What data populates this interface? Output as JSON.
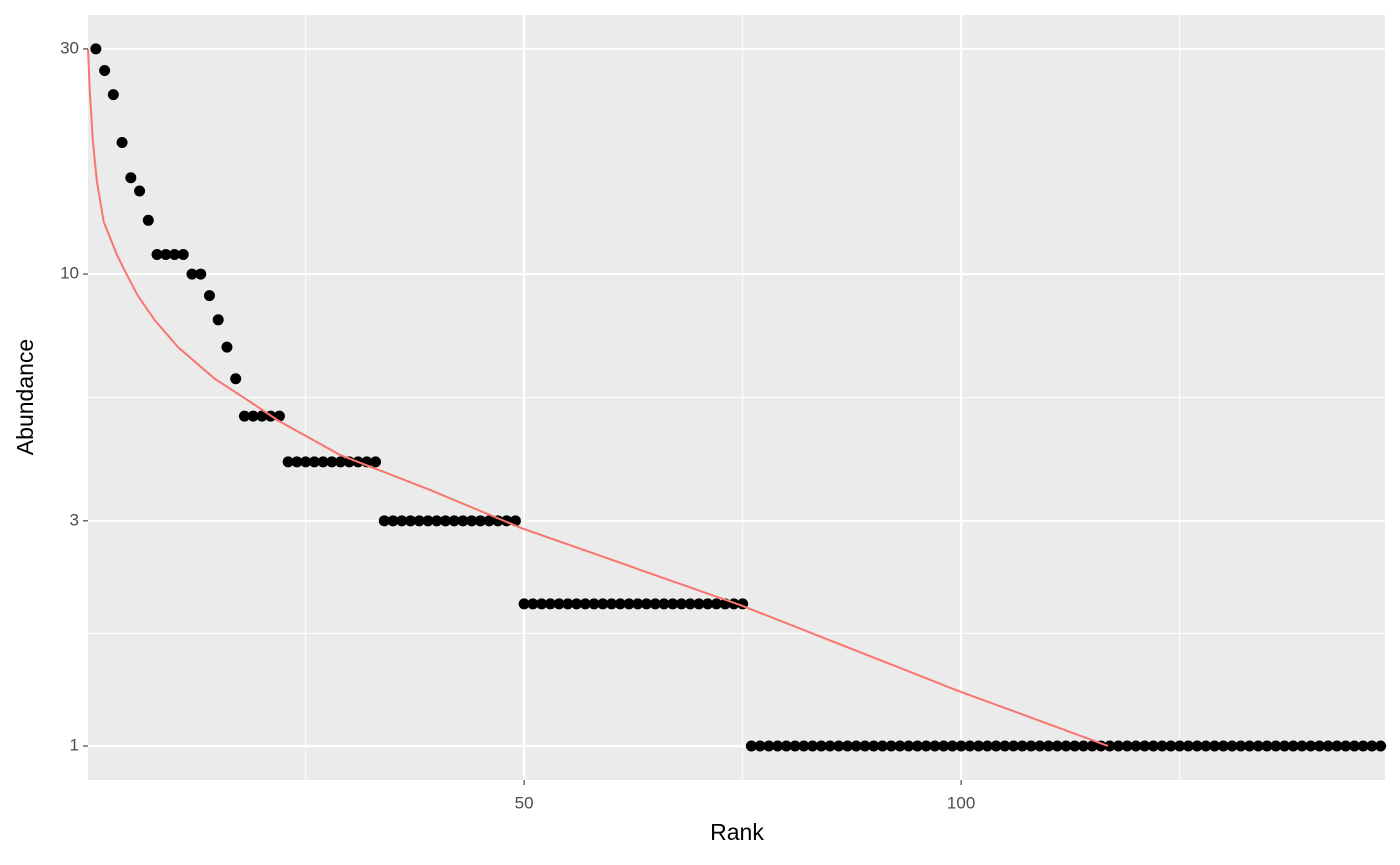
{
  "chart_data": {
    "type": "scatter",
    "x_label": "Rank",
    "y_label": "Abundance",
    "xlim": [
      0.1,
      148.5
    ],
    "ylim": [
      0.847,
      35.4
    ],
    "xticks": [
      50,
      100
    ],
    "yticks": [
      1,
      3,
      10,
      30
    ],
    "x_minor_grid": [
      25,
      75,
      125
    ],
    "y_minor_grid": [
      1.732,
      5.477
    ],
    "y_log": true,
    "grid": true,
    "series": [
      {
        "mode": "points",
        "color": "#000000",
        "x": [
          1,
          2,
          3,
          4,
          5,
          6,
          7,
          8,
          9,
          10,
          11,
          12,
          13,
          14,
          15,
          16,
          17,
          18,
          19,
          20,
          21,
          22,
          23,
          24,
          25,
          26,
          27,
          28,
          29,
          30,
          31,
          32,
          33,
          34,
          35,
          36,
          37,
          38,
          39,
          40,
          41,
          42,
          43,
          44,
          45,
          46,
          47,
          48,
          49,
          50,
          51,
          52,
          53,
          54,
          55,
          56,
          57,
          58,
          59,
          60,
          61,
          62,
          63,
          64,
          65,
          66,
          67,
          68,
          69,
          70,
          71,
          72,
          73,
          74,
          75,
          76,
          77,
          78,
          79,
          80,
          81,
          82,
          83,
          84,
          85,
          86,
          87,
          88,
          89,
          90,
          91,
          92,
          93,
          94,
          95,
          96,
          97,
          98,
          99,
          100,
          101,
          102,
          103,
          104,
          105,
          106,
          107,
          108,
          109,
          110,
          111,
          112,
          113,
          114,
          115,
          116,
          117,
          118,
          119,
          120,
          121,
          122,
          123,
          124,
          125,
          126,
          127,
          128,
          129,
          130,
          131,
          132,
          133,
          134,
          135,
          136,
          137,
          138,
          139,
          140,
          141,
          142,
          143,
          144,
          145,
          146,
          147,
          148
        ],
        "values": [
          30,
          27,
          24,
          19,
          16,
          15,
          13,
          11,
          11,
          11,
          11,
          10,
          10,
          9,
          8,
          7,
          6,
          5,
          5,
          5,
          5,
          5,
          4,
          4,
          4,
          4,
          4,
          4,
          4,
          4,
          4,
          4,
          4,
          3,
          3,
          3,
          3,
          3,
          3,
          3,
          3,
          3,
          3,
          3,
          3,
          3,
          3,
          3,
          3,
          2,
          2,
          2,
          2,
          2,
          2,
          2,
          2,
          2,
          2,
          2,
          2,
          2,
          2,
          2,
          2,
          2,
          2,
          2,
          2,
          2,
          2,
          2,
          2,
          2,
          2,
          1,
          1,
          1,
          1,
          1,
          1,
          1,
          1,
          1,
          1,
          1,
          1,
          1,
          1,
          1,
          1,
          1,
          1,
          1,
          1,
          1,
          1,
          1,
          1,
          1,
          1,
          1,
          1,
          1,
          1,
          1,
          1,
          1,
          1,
          1,
          1,
          1,
          1,
          1,
          1,
          1,
          1,
          1,
          1,
          1,
          1,
          1,
          1,
          1,
          1,
          1,
          1,
          1,
          1,
          1,
          1,
          1,
          1,
          1,
          1,
          1,
          1,
          1,
          1,
          1,
          1,
          1,
          1,
          1,
          1,
          1,
          1,
          1
        ]
      },
      {
        "mode": "line",
        "color": "#F8766D",
        "x": [
          0.1,
          0.3,
          0.65,
          1.1,
          1.9,
          3.4,
          4.5,
          5.8,
          7.7,
          10.4,
          14.6,
          18,
          21.8,
          28.9,
          39.2,
          49.6,
          74.7,
          99.6,
          116.8
        ],
        "values": [
          30,
          24.5,
          19.2,
          15.8,
          12.9,
          11,
          10,
          9,
          8,
          7,
          6,
          5.46,
          4.9,
          4.14,
          3.49,
          2.9,
          1.99,
          1.31,
          1
        ]
      }
    ]
  }
}
